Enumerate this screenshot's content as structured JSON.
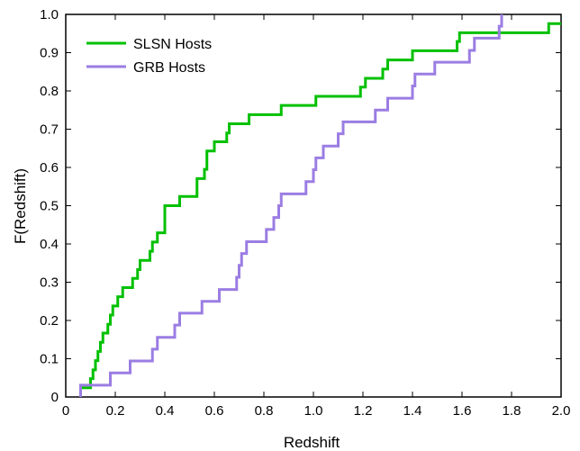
{
  "chart_data": {
    "type": "line",
    "title": "",
    "xlabel": "Redshift",
    "ylabel": "F(Redshift)",
    "xlim": [
      0,
      2.0
    ],
    "ylim": [
      0,
      1.0
    ],
    "grid": false,
    "legend_position": "top-left",
    "x_ticks": [
      "0",
      "0.2",
      "0.4",
      "0.6",
      "0.8",
      "1.0",
      "1.2",
      "1.4",
      "1.6",
      "1.8",
      "2.0"
    ],
    "y_ticks": [
      "0",
      "0.1",
      "0.2",
      "0.3",
      "0.4",
      "0.5",
      "0.6",
      "0.7",
      "0.8",
      "0.9",
      "1.0"
    ],
    "series": [
      {
        "name": "SLSN Hosts",
        "color": "#00c000",
        "steps": [
          [
            0.06,
            0.024
          ],
          [
            0.1,
            0.048
          ],
          [
            0.11,
            0.071
          ],
          [
            0.12,
            0.095
          ],
          [
            0.13,
            0.119
          ],
          [
            0.14,
            0.143
          ],
          [
            0.15,
            0.167
          ],
          [
            0.17,
            0.19
          ],
          [
            0.18,
            0.214
          ],
          [
            0.19,
            0.238
          ],
          [
            0.21,
            0.262
          ],
          [
            0.23,
            0.286
          ],
          [
            0.27,
            0.31
          ],
          [
            0.29,
            0.333
          ],
          [
            0.3,
            0.357
          ],
          [
            0.34,
            0.381
          ],
          [
            0.35,
            0.405
          ],
          [
            0.37,
            0.429
          ],
          [
            0.4,
            0.452
          ],
          [
            0.4,
            0.476
          ],
          [
            0.4,
            0.5
          ],
          [
            0.46,
            0.524
          ],
          [
            0.53,
            0.548
          ],
          [
            0.53,
            0.571
          ],
          [
            0.56,
            0.595
          ],
          [
            0.57,
            0.619
          ],
          [
            0.57,
            0.643
          ],
          [
            0.6,
            0.667
          ],
          [
            0.65,
            0.69
          ],
          [
            0.66,
            0.714
          ],
          [
            0.74,
            0.738
          ],
          [
            0.87,
            0.762
          ],
          [
            1.01,
            0.786
          ],
          [
            1.19,
            0.81
          ],
          [
            1.21,
            0.833
          ],
          [
            1.28,
            0.857
          ],
          [
            1.3,
            0.881
          ],
          [
            1.4,
            0.905
          ],
          [
            1.58,
            0.929
          ],
          [
            1.59,
            0.952
          ],
          [
            1.95,
            0.976
          ],
          [
            2.0,
            0.976
          ]
        ]
      },
      {
        "name": "GRB Hosts",
        "color": "#9b7de3",
        "steps": [
          [
            0.06,
            0.031
          ],
          [
            0.18,
            0.063
          ],
          [
            0.26,
            0.094
          ],
          [
            0.35,
            0.125
          ],
          [
            0.37,
            0.156
          ],
          [
            0.44,
            0.188
          ],
          [
            0.46,
            0.219
          ],
          [
            0.55,
            0.25
          ],
          [
            0.62,
            0.281
          ],
          [
            0.69,
            0.313
          ],
          [
            0.7,
            0.344
          ],
          [
            0.71,
            0.375
          ],
          [
            0.73,
            0.406
          ],
          [
            0.81,
            0.438
          ],
          [
            0.84,
            0.469
          ],
          [
            0.86,
            0.5
          ],
          [
            0.87,
            0.531
          ],
          [
            0.97,
            0.563
          ],
          [
            1.0,
            0.594
          ],
          [
            1.01,
            0.625
          ],
          [
            1.04,
            0.656
          ],
          [
            1.1,
            0.688
          ],
          [
            1.12,
            0.719
          ],
          [
            1.25,
            0.75
          ],
          [
            1.3,
            0.781
          ],
          [
            1.4,
            0.813
          ],
          [
            1.41,
            0.844
          ],
          [
            1.49,
            0.875
          ],
          [
            1.63,
            0.906
          ],
          [
            1.65,
            0.938
          ],
          [
            1.75,
            0.969
          ],
          [
            1.76,
            1.0
          ]
        ]
      }
    ]
  }
}
